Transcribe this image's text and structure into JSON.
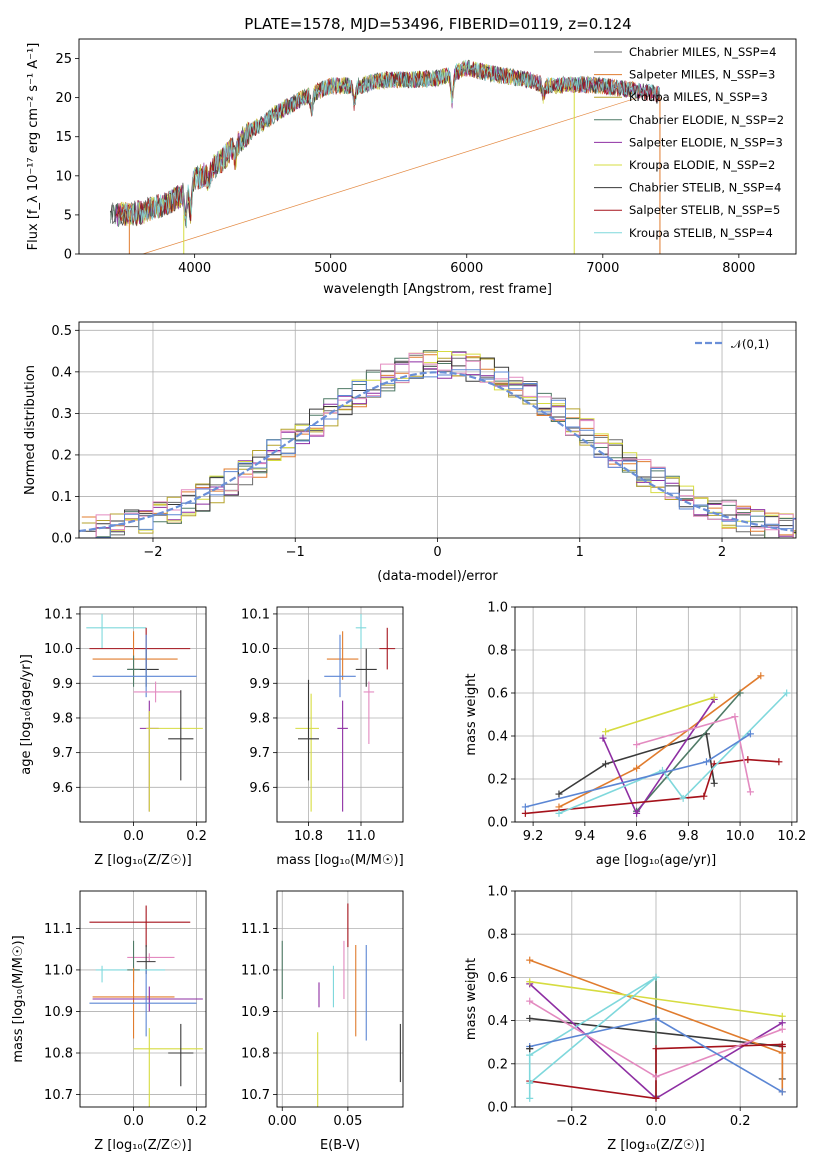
{
  "figure": {
    "title": "PLATE=1578, MJD=53496, FIBERID=0119, z=0.124"
  },
  "model_colors": [
    "#6b6b6b",
    "#e07c2e",
    "#b5a22c",
    "#4f7a66",
    "#8e2fa3",
    "#d6dc40",
    "#3a3a3a",
    "#a5121b",
    "#7fd8dc"
  ],
  "extra_colors": {
    "gaussian": "#6a8fd8",
    "pink": "#e38ac0",
    "blue": "#5b86d4"
  },
  "chart_data": [
    {
      "id": "spectrum",
      "type": "line",
      "xlabel": "wavelength [Angstrom, rest frame]",
      "ylabel": "Flux [f_λ 10⁻¹⁷ erg cm⁻² s⁻¹ A⁻¹]",
      "xlim": [
        3150,
        8420
      ],
      "ylim": [
        0,
        27.5
      ],
      "xticks": [
        4000,
        5000,
        6000,
        7000,
        8000
      ],
      "yticks": [
        0,
        5,
        10,
        15,
        20,
        25
      ],
      "grid": false,
      "legend_position": "top-right",
      "series": [
        {
          "name": "Chabrier MILES, N_SSP=4"
        },
        {
          "name": "Salpeter MILES, N_SSP=3"
        },
        {
          "name": "Kroupa MILES, N_SSP=3"
        },
        {
          "name": "Chabrier ELODIE, N_SSP=2"
        },
        {
          "name": "Salpeter ELODIE, N_SSP=3"
        },
        {
          "name": "Kroupa ELODIE, N_SSP=2"
        },
        {
          "name": "Chabrier STELIB, N_SSP=4"
        },
        {
          "name": "Salpeter STELIB, N_SSP=5"
        },
        {
          "name": "Kroupa STELIB, N_SSP=4"
        }
      ],
      "continuum": {
        "x": [
          3400,
          3600,
          3800,
          3900,
          4000,
          4100,
          4200,
          4300,
          4400,
          4600,
          4800,
          5000,
          5200,
          5400,
          5600,
          5800,
          6000,
          6200,
          6400,
          6600,
          6800,
          7000,
          7200,
          7400
        ],
        "y": [
          5,
          5.3,
          6.5,
          7.5,
          9.5,
          10.5,
          12,
          14,
          15.5,
          18,
          20,
          21.5,
          21.5,
          22.3,
          22.3,
          22.5,
          23.8,
          23,
          22.5,
          21.5,
          21.7,
          21.5,
          21,
          20.5
        ]
      }
    },
    {
      "id": "residuals",
      "type": "histogram",
      "xlabel": "(data-model)/error",
      "ylabel": "Normed distribution",
      "xlim": [
        -2.52,
        2.52
      ],
      "ylim": [
        0,
        0.52
      ],
      "xticks": [
        -2,
        -1,
        0,
        1,
        2
      ],
      "yticks": [
        0.0,
        0.1,
        0.2,
        0.3,
        0.4,
        0.5
      ],
      "grid": true,
      "legend_position": "top-right",
      "legend": "𝒩(0,1)",
      "bin_width": 0.1,
      "bin_start": -2.5
    },
    {
      "id": "age-vs-Z",
      "type": "errorbar",
      "xlabel": "Z [log₁₀(Z/Z☉)]",
      "ylabel": "age  [log₁₀(age/yr)]",
      "xlim": [
        -0.17,
        0.23
      ],
      "ylim": [
        9.5,
        10.12
      ],
      "xticks": [
        0.0,
        0.2
      ],
      "yticks": [
        9.6,
        9.7,
        9.8,
        9.9,
        10.0,
        10.1
      ],
      "grid": true,
      "points": [
        {
          "color": "#7fd8dc",
          "x": -0.1,
          "xerr": [
            0.05,
            0.14
          ],
          "y": 10.06,
          "yerr": [
            0.06,
            0.04
          ]
        },
        {
          "color": "#a5121b",
          "x": 0.04,
          "xerr": [
            0.18,
            0.14
          ],
          "y": 10.0,
          "yerr": [
            0.06,
            0.06
          ]
        },
        {
          "color": "#e07c2e",
          "x": 0.0,
          "xerr": [
            0.13,
            0.14
          ],
          "y": 9.97,
          "yerr": [
            0.06,
            0.08
          ]
        },
        {
          "color": "#3a3a3a",
          "x": 0.04,
          "xerr": [
            0.06,
            0.04
          ],
          "y": 9.94,
          "yerr": [
            0.05,
            0.06
          ]
        },
        {
          "color": "#4f7a66",
          "x": 0.0,
          "xerr": [
            0.02,
            0.02
          ],
          "y": 9.94,
          "yerr": [
            0.05,
            0.04
          ]
        },
        {
          "color": "#5b86d4",
          "x": 0.04,
          "xerr": [
            0.17,
            0.16
          ],
          "y": 9.92,
          "yerr": [
            0.06,
            0.12
          ]
        },
        {
          "color": "#e38ac0",
          "x": 0.07,
          "xerr": [
            0.07,
            0.08
          ],
          "y": 9.875,
          "yerr": [
            0.03,
            0.03
          ]
        },
        {
          "color": "#8e2fa3",
          "x": 0.05,
          "xerr": [
            0.03,
            0.03
          ],
          "y": 9.77,
          "yerr": [
            0.24,
            0.08
          ]
        },
        {
          "color": "#d6dc40",
          "x": 0.05,
          "xerr": [
            0.01,
            0.17
          ],
          "y": 9.77,
          "yerr": [
            0.24,
            0.05
          ]
        },
        {
          "color": "#3a3a3a",
          "x": 0.15,
          "xerr": [
            0.04,
            0.04
          ],
          "y": 9.74,
          "yerr": [
            0.12,
            0.14
          ]
        }
      ]
    },
    {
      "id": "age-vs-mass",
      "type": "errorbar",
      "xlabel": "mass [log₁₀(M/M☉)]",
      "ylabel": "",
      "xlim": [
        10.68,
        11.16
      ],
      "ylim": [
        9.5,
        10.12
      ],
      "xticks": [
        10.8,
        11.0
      ],
      "yticks": [
        9.6,
        9.7,
        9.8,
        9.9,
        10.0,
        10.1
      ],
      "grid": true,
      "points": [
        {
          "color": "#7fd8dc",
          "x": 11.0,
          "xerr": [
            0.02,
            0.02
          ],
          "y": 10.06,
          "yerr": [
            0.06,
            0.04
          ]
        },
        {
          "color": "#a5121b",
          "x": 11.1,
          "xerr": [
            0.03,
            0.03
          ],
          "y": 10.0,
          "yerr": [
            0.06,
            0.06
          ]
        },
        {
          "color": "#e07c2e",
          "x": 10.93,
          "xerr": [
            0.06,
            0.06
          ],
          "y": 9.97,
          "yerr": [
            0.06,
            0.08
          ]
        },
        {
          "color": "#3a3a3a",
          "x": 11.02,
          "xerr": [
            0.04,
            0.04
          ],
          "y": 9.94,
          "yerr": [
            0.05,
            0.06
          ]
        },
        {
          "color": "#5b86d4",
          "x": 10.92,
          "xerr": [
            0.06,
            0.06
          ],
          "y": 9.92,
          "yerr": [
            0.06,
            0.12
          ]
        },
        {
          "color": "#e38ac0",
          "x": 11.03,
          "xerr": [
            0.02,
            0.02
          ],
          "y": 9.875,
          "yerr": [
            0.15,
            0.03
          ]
        },
        {
          "color": "#8e2fa3",
          "x": 10.93,
          "xerr": [
            0.02,
            0.02
          ],
          "y": 9.77,
          "yerr": [
            0.24,
            0.08
          ]
        },
        {
          "color": "#d6dc40",
          "x": 10.81,
          "xerr": [
            0.06,
            0.03
          ],
          "y": 9.77,
          "yerr": [
            0.24,
            0.1
          ]
        },
        {
          "color": "#3a3a3a",
          "x": 10.8,
          "xerr": [
            0.04,
            0.04
          ],
          "y": 9.74,
          "yerr": [
            0.12,
            0.17
          ]
        }
      ]
    },
    {
      "id": "mass-weight-vs-age",
      "type": "line",
      "xlabel": "age  [log₁₀(age/yr)]",
      "ylabel": "mass weight",
      "xlim": [
        9.13,
        10.22
      ],
      "ylim": [
        0.0,
        1.0
      ],
      "xticks": [
        9.2,
        9.4,
        9.6,
        9.8,
        10.0,
        10.2
      ],
      "yticks": [
        0.0,
        0.2,
        0.4,
        0.6,
        0.8,
        1.0
      ],
      "grid": true,
      "series": [
        {
          "color": "#3a3a3a",
          "x": [
            9.3,
            9.48,
            9.87,
            9.9
          ],
          "y": [
            0.13,
            0.27,
            0.41,
            0.18
          ]
        },
        {
          "color": "#e07c2e",
          "x": [
            9.3,
            9.6,
            10.08
          ],
          "y": [
            0.07,
            0.25,
            0.68
          ]
        },
        {
          "color": "#4f7a66",
          "x": [
            9.6,
            10.0
          ],
          "y": [
            0.05,
            0.6
          ]
        },
        {
          "color": "#8e2fa3",
          "x": [
            9.47,
            9.6,
            9.9
          ],
          "y": [
            0.39,
            0.04,
            0.57
          ]
        },
        {
          "color": "#d6dc40",
          "x": [
            9.48,
            9.9
          ],
          "y": [
            0.42,
            0.58
          ]
        },
        {
          "color": "#a5121b",
          "x": [
            9.17,
            9.86,
            9.9,
            10.03,
            10.15
          ],
          "y": [
            0.04,
            0.12,
            0.27,
            0.29,
            0.28
          ]
        },
        {
          "color": "#7fd8dc",
          "x": [
            9.3,
            9.7,
            9.78,
            10.18
          ],
          "y": [
            0.04,
            0.24,
            0.11,
            0.6
          ]
        },
        {
          "color": "#e38ac0",
          "x": [
            9.6,
            9.98,
            10.04
          ],
          "y": [
            0.36,
            0.49,
            0.14
          ]
        },
        {
          "color": "#5b86d4",
          "x": [
            9.17,
            9.87,
            10.04
          ],
          "y": [
            0.07,
            0.28,
            0.41
          ]
        }
      ]
    },
    {
      "id": "mass-vs-Z",
      "type": "errorbar",
      "xlabel": "Z [log₁₀(Z/Z☉)]",
      "ylabel": "mass [log₁₀(M/M☉)]",
      "xlim": [
        -0.17,
        0.23
      ],
      "ylim": [
        10.67,
        11.19
      ],
      "xticks": [
        0.0,
        0.2
      ],
      "yticks": [
        10.7,
        10.8,
        10.9,
        11.0,
        11.1
      ],
      "grid": true,
      "points": [
        {
          "color": "#a5121b",
          "x": 0.04,
          "xerr": [
            0.18,
            0.14
          ],
          "y": 11.115,
          "yerr": [
            0.06,
            0.04
          ]
        },
        {
          "color": "#e38ac0",
          "x": 0.05,
          "xerr": [
            0.07,
            0.08
          ],
          "y": 11.03,
          "yerr": [
            0.01,
            0.01
          ]
        },
        {
          "color": "#3a3a3a",
          "x": 0.04,
          "xerr": [
            0.03,
            0.03
          ],
          "y": 11.02,
          "yerr": [
            0.03,
            0.04
          ]
        },
        {
          "color": "#7fd8dc",
          "x": -0.1,
          "xerr": [
            0.02,
            0.2
          ],
          "y": 11.0,
          "yerr": [
            0.03,
            0.01
          ]
        },
        {
          "color": "#4f7a66",
          "x": 0.0,
          "xerr": [
            0.02,
            0.02
          ],
          "y": 11.0,
          "yerr": [
            0.03,
            0.07
          ]
        },
        {
          "color": "#e07c2e",
          "x": 0.0,
          "xerr": [
            0.13,
            0.13
          ],
          "y": 10.935,
          "yerr": [
            0.1,
            0.07
          ]
        },
        {
          "color": "#8e2fa3",
          "x": 0.05,
          "xerr": [
            0.18,
            0.17
          ],
          "y": 10.93,
          "yerr": [
            0.03,
            0.03
          ]
        },
        {
          "color": "#5b86d4",
          "x": 0.04,
          "xerr": [
            0.18,
            0.16
          ],
          "y": 10.92,
          "yerr": [
            0.08,
            0.08
          ]
        },
        {
          "color": "#d6dc40",
          "x": 0.05,
          "xerr": [
            0.05,
            0.17
          ],
          "y": 10.81,
          "yerr": [
            0.15,
            0.05
          ]
        },
        {
          "color": "#3a3a3a",
          "x": 0.15,
          "xerr": [
            0.04,
            0.04
          ],
          "y": 10.8,
          "yerr": [
            0.08,
            0.07
          ]
        }
      ]
    },
    {
      "id": "mass-vs-ebv",
      "type": "errorbar",
      "xlabel": "E(B-V)",
      "ylabel": "",
      "xlim": [
        -0.004,
        0.092
      ],
      "ylim": [
        10.67,
        11.19
      ],
      "xticks": [
        0.0,
        0.05
      ],
      "yticks": [
        10.7,
        10.8,
        10.9,
        11.0,
        11.1
      ],
      "grid": true,
      "points": [
        {
          "color": "#a5121b",
          "x": 0.05,
          "xerr": [
            0,
            0
          ],
          "y": 11.115,
          "yerr": [
            0.06,
            0.045
          ]
        },
        {
          "color": "#5b86d4",
          "x": 0.064,
          "xerr": [
            0,
            0
          ],
          "y": 10.94,
          "yerr": [
            0.11,
            0.12
          ]
        },
        {
          "color": "#e38ac0",
          "x": 0.047,
          "xerr": [
            0,
            0
          ],
          "y": 11.0,
          "yerr": [
            0.07,
            0.07
          ]
        },
        {
          "color": "#4f7a66",
          "x": 0.0,
          "xerr": [
            0,
            0
          ],
          "y": 11.0,
          "yerr": [
            0.07,
            0.07
          ]
        },
        {
          "color": "#7fd8dc",
          "x": 0.039,
          "xerr": [
            0,
            0
          ],
          "y": 10.96,
          "yerr": [
            0.05,
            0.05
          ]
        },
        {
          "color": "#e07c2e",
          "x": 0.056,
          "xerr": [
            0,
            0
          ],
          "y": 10.96,
          "yerr": [
            0.12,
            0.1
          ]
        },
        {
          "color": "#8e2fa3",
          "x": 0.028,
          "xerr": [
            0,
            0
          ],
          "y": 10.94,
          "yerr": [
            0.03,
            0.03
          ]
        },
        {
          "color": "#d6dc40",
          "x": 0.027,
          "xerr": [
            0,
            0
          ],
          "y": 10.76,
          "yerr": [
            0.09,
            0.09
          ]
        },
        {
          "color": "#3a3a3a",
          "x": 0.09,
          "xerr": [
            0,
            0
          ],
          "y": 10.8,
          "yerr": [
            0.07,
            0.07
          ]
        }
      ]
    },
    {
      "id": "mass-weight-vs-Z",
      "type": "line",
      "xlabel": "Z [log₁₀(Z/Z☉)]",
      "ylabel": "mass weight",
      "xlim": [
        -0.335,
        0.335
      ],
      "ylim": [
        0.0,
        1.0
      ],
      "xticks": [
        -0.2,
        0.0,
        0.2
      ],
      "yticks": [
        0.0,
        0.2,
        0.4,
        0.6,
        0.8,
        1.0
      ],
      "grid": true,
      "series": [
        {
          "color": "#3a3a3a",
          "x": [
            -0.3,
            0.3,
            0.3
          ],
          "y": [
            0.41,
            0.28,
            0.13
          ]
        },
        {
          "color": "#e07c2e",
          "x": [
            -0.3,
            0.3,
            0.3
          ],
          "y": [
            0.68,
            0.25,
            0.07
          ]
        },
        {
          "color": "#4f7a66",
          "x": [
            0.0,
            0.0
          ],
          "y": [
            0.6,
            0.05
          ]
        },
        {
          "color": "#8e2fa3",
          "x": [
            -0.3,
            0.0,
            0.3
          ],
          "y": [
            0.57,
            0.04,
            0.39
          ]
        },
        {
          "color": "#d6dc40",
          "x": [
            -0.3,
            0.3
          ],
          "y": [
            0.58,
            0.42
          ]
        },
        {
          "color": "#a5121b",
          "x": [
            -0.3,
            0.0,
            0.0,
            0.3,
            0.3
          ],
          "y": [
            0.12,
            0.04,
            0.27,
            0.29,
            0.28
          ]
        },
        {
          "color": "#7fd8dc",
          "x": [
            -0.3,
            0.0,
            -0.3,
            -0.3
          ],
          "y": [
            0.11,
            0.6,
            0.24,
            0.04
          ]
        },
        {
          "color": "#e38ac0",
          "x": [
            -0.3,
            0.0,
            0.3
          ],
          "y": [
            0.49,
            0.14,
            0.36
          ]
        },
        {
          "color": "#5b86d4",
          "x": [
            -0.3,
            0.0,
            0.3
          ],
          "y": [
            0.28,
            0.41,
            0.07
          ]
        },
        {
          "color": "#3a3a3a",
          "x": [
            -0.3,
            -0.3
          ],
          "y": [
            0.27,
            0.27
          ]
        }
      ]
    }
  ]
}
